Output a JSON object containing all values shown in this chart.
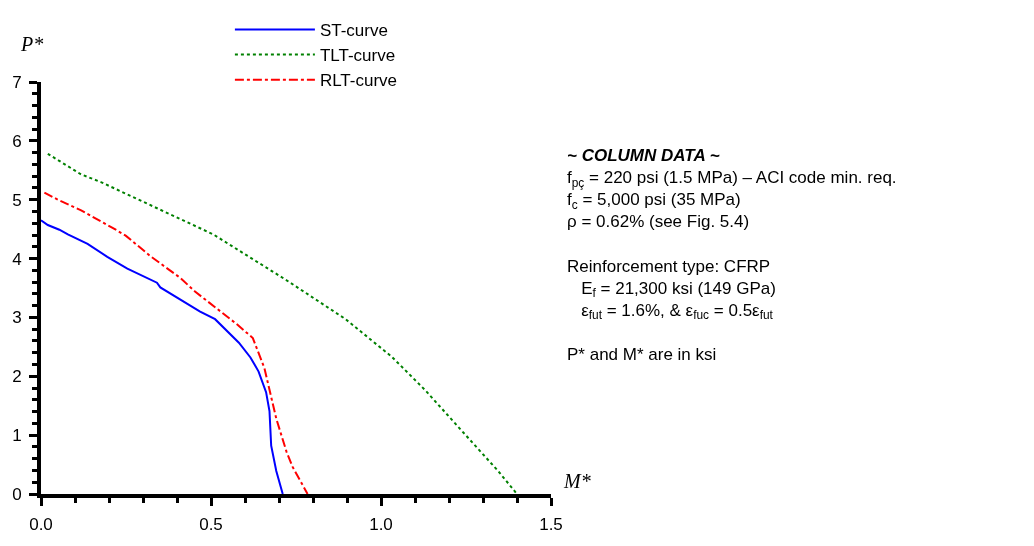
{
  "chart_data": {
    "type": "line",
    "xlabel": "M*",
    "ylabel": "P*",
    "xlim": [
      0,
      1.5
    ],
    "ylim": [
      0,
      7
    ],
    "xticks": [
      {
        "value": 0,
        "label": "0.0"
      },
      {
        "value": 0.1,
        "label": null
      },
      {
        "value": 0.2,
        "label": null
      },
      {
        "value": 0.3,
        "label": null
      },
      {
        "value": 0.4,
        "label": null
      },
      {
        "value": 0.5,
        "label": "0.5"
      },
      {
        "value": 0.6,
        "label": null
      },
      {
        "value": 0.7,
        "label": null
      },
      {
        "value": 0.8,
        "label": null
      },
      {
        "value": 0.9,
        "label": null
      },
      {
        "value": 1.0,
        "label": "1.0"
      },
      {
        "value": 1.1,
        "label": null
      },
      {
        "value": 1.2,
        "label": null
      },
      {
        "value": 1.3,
        "label": null
      },
      {
        "value": 1.4,
        "label": null
      },
      {
        "value": 1.5,
        "label": "1.5"
      }
    ],
    "yticks": [
      0,
      {
        "value": 0.2,
        "label": null
      },
      {
        "value": 0.4,
        "label": null
      },
      {
        "value": 0.6,
        "label": null
      },
      {
        "value": 0.8,
        "label": null
      },
      1,
      {
        "value": 1.2,
        "label": null
      },
      {
        "value": 1.4,
        "label": null
      },
      {
        "value": 1.6,
        "label": null
      },
      {
        "value": 1.8,
        "label": null
      },
      2,
      {
        "value": 2.2,
        "label": null
      },
      {
        "value": 2.4,
        "label": null
      },
      {
        "value": 2.6,
        "label": null
      },
      {
        "value": 2.8,
        "label": null
      },
      3,
      {
        "value": 3.2,
        "label": null
      },
      {
        "value": 3.4,
        "label": null
      },
      {
        "value": 3.6,
        "label": null
      },
      {
        "value": 3.8,
        "label": null
      },
      4,
      {
        "value": 4.2,
        "label": null
      },
      {
        "value": 4.4,
        "label": null
      },
      {
        "value": 4.6,
        "label": null
      },
      {
        "value": 4.8,
        "label": null
      },
      5,
      {
        "value": 5.2,
        "label": null
      },
      {
        "value": 5.4,
        "label": null
      },
      {
        "value": 5.6,
        "label": null
      },
      {
        "value": 5.8,
        "label": null
      },
      6,
      {
        "value": 6.2,
        "label": null
      },
      {
        "value": 6.4,
        "label": null
      },
      {
        "value": 6.6,
        "label": null
      },
      {
        "value": 6.8,
        "label": null
      },
      7
    ],
    "legend": "top",
    "marker": "none",
    "series": [
      {
        "name": "ST-curve",
        "color": "#0000ff",
        "line_style": "solid",
        "x": [
          0.0,
          0.02,
          0.054,
          0.079,
          0.137,
          0.195,
          0.254,
          0.341,
          0.351,
          0.468,
          0.512,
          0.582,
          0.616,
          0.64,
          0.662,
          0.672,
          0.677,
          0.692,
          0.711
        ],
        "values": [
          4.65,
          4.57,
          4.49,
          4.41,
          4.25,
          4.03,
          3.83,
          3.59,
          3.51,
          3.1,
          2.97,
          2.57,
          2.32,
          2.08,
          1.73,
          1.41,
          0.82,
          0.39,
          0
        ]
      },
      {
        "name": "TLT-curve",
        "color": "#008000",
        "line_style": "dotted",
        "x": [
          0.02,
          0.118,
          0.176,
          0.507,
          0.623,
          0.72,
          0.896,
          1.032,
          1.129,
          1.246,
          1.343,
          1.4
        ],
        "values": [
          5.78,
          5.43,
          5.3,
          4.41,
          3.99,
          3.64,
          2.97,
          2.33,
          1.77,
          1.02,
          0.4,
          0
        ]
      },
      {
        "name": "RLT-curve",
        "color": "#ff0000",
        "line_style": "dashdot",
        "x": [
          0.01,
          0.05,
          0.118,
          0.22,
          0.249,
          0.322,
          0.41,
          0.453,
          0.575,
          0.623,
          0.657,
          0.692,
          0.722,
          0.74,
          0.784
        ],
        "values": [
          5.12,
          5.0,
          4.82,
          4.49,
          4.39,
          4.04,
          3.67,
          3.44,
          2.89,
          2.65,
          2.14,
          1.28,
          0.72,
          0.46,
          0
        ]
      }
    ],
    "annotations": [
      "~ COLUMN DATA ~",
      "f$_{pç}$ = 220 psi (1.5 MPa) – ACI code min. req.",
      "f$_{c}$ = 5,000 psi (35 MPa)",
      "ρ = 0.62% (see Fig. 5.4)",
      "Reinforcement type: CFRP",
      "E$_{f}$ = 21,300 ksi (149 GPa)",
      "ε$_{fut}$ = 1.6%, & ε$_{fuc}$ = 0.5ε$_{fut}$",
      "P* and M* are in ksi"
    ]
  }
}
